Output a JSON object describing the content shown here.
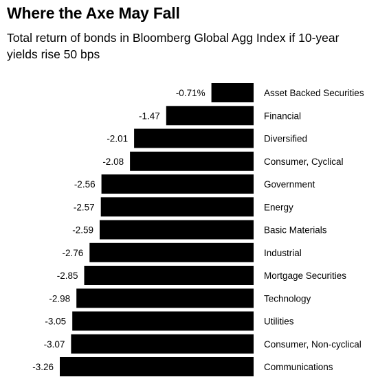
{
  "title": "Where the Axe May Fall",
  "subtitle": "Total return of bonds in Bloomberg Global Agg Index if 10-year yields rise 50 bps",
  "chart_data": {
    "type": "bar",
    "orientation": "horizontal",
    "title": "Where the Axe May Fall",
    "subtitle": "Total return of bonds in Bloomberg Global Agg Index if 10-year yields rise 50 bps",
    "categories": [
      "Asset Backed Securities",
      "Financial",
      "Diversified",
      "Consumer, Cyclical",
      "Government",
      "Energy",
      "Basic Materials",
      "Industrial",
      "Mortgage Securities",
      "Technology",
      "Utilities",
      "Consumer, Non-cyclical",
      "Communications"
    ],
    "values": [
      -0.71,
      -1.47,
      -2.01,
      -2.08,
      -2.56,
      -2.57,
      -2.59,
      -2.76,
      -2.85,
      -2.98,
      -3.05,
      -3.07,
      -3.26
    ],
    "data_labels": [
      "-0.71%",
      "-1.47",
      "-2.01",
      "-2.08",
      "-2.56",
      "-2.57",
      "-2.59",
      "-2.76",
      "-2.85",
      "-2.98",
      "-3.05",
      "-3.07",
      "-3.26"
    ],
    "unit": "%",
    "bar_color": "#000000",
    "grid": false,
    "legend": "none"
  }
}
